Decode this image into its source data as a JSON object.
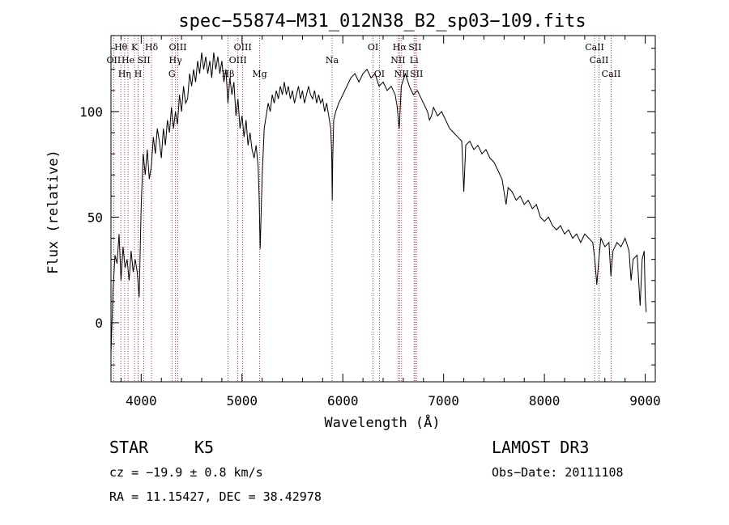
{
  "chart_data": {
    "type": "line",
    "title": "spec−55874−M31_012N38_B2_sp03−109.fits",
    "xlabel": "Wavelength (Å)",
    "ylabel": "Flux (relative)",
    "xlim": [
      3700,
      9100
    ],
    "ylim": [
      -28,
      136
    ],
    "x_ticks": [
      {
        "value": 4000,
        "label": "4000"
      },
      {
        "value": 5000,
        "label": "5000"
      },
      {
        "value": 6000,
        "label": "6000"
      },
      {
        "value": 7000,
        "label": "7000"
      },
      {
        "value": 8000,
        "label": "8000"
      },
      {
        "value": 9000,
        "label": "9000"
      }
    ],
    "y_ticks": [
      {
        "value": 0,
        "label": "0"
      },
      {
        "value": 50,
        "label": "50"
      },
      {
        "value": 100,
        "label": "100"
      }
    ],
    "spectrum_points": [
      [
        3700,
        -15
      ],
      [
        3720,
        15
      ],
      [
        3740,
        32
      ],
      [
        3760,
        28
      ],
      [
        3780,
        42
      ],
      [
        3800,
        20
      ],
      [
        3820,
        36
      ],
      [
        3840,
        26
      ],
      [
        3860,
        30
      ],
      [
        3880,
        20
      ],
      [
        3900,
        34
      ],
      [
        3920,
        24
      ],
      [
        3940,
        30
      ],
      [
        3960,
        24
      ],
      [
        3980,
        12
      ],
      [
        4000,
        55
      ],
      [
        4020,
        80
      ],
      [
        4040,
        70
      ],
      [
        4060,
        82
      ],
      [
        4080,
        68
      ],
      [
        4100,
        74
      ],
      [
        4120,
        88
      ],
      [
        4140,
        80
      ],
      [
        4160,
        92
      ],
      [
        4180,
        86
      ],
      [
        4200,
        78
      ],
      [
        4220,
        92
      ],
      [
        4240,
        84
      ],
      [
        4260,
        96
      ],
      [
        4280,
        90
      ],
      [
        4300,
        102
      ],
      [
        4320,
        92
      ],
      [
        4340,
        100
      ],
      [
        4360,
        94
      ],
      [
        4380,
        108
      ],
      [
        4400,
        100
      ],
      [
        4420,
        112
      ],
      [
        4440,
        104
      ],
      [
        4460,
        106
      ],
      [
        4480,
        118
      ],
      [
        4500,
        112
      ],
      [
        4520,
        120
      ],
      [
        4540,
        114
      ],
      [
        4560,
        124
      ],
      [
        4580,
        118
      ],
      [
        4600,
        128
      ],
      [
        4620,
        120
      ],
      [
        4640,
        126
      ],
      [
        4660,
        118
      ],
      [
        4680,
        124
      ],
      [
        4700,
        116
      ],
      [
        4720,
        128
      ],
      [
        4740,
        120
      ],
      [
        4760,
        126
      ],
      [
        4780,
        118
      ],
      [
        4800,
        124
      ],
      [
        4820,
        114
      ],
      [
        4840,
        120
      ],
      [
        4860,
        104
      ],
      [
        4880,
        116
      ],
      [
        4900,
        108
      ],
      [
        4920,
        114
      ],
      [
        4940,
        98
      ],
      [
        4960,
        106
      ],
      [
        4980,
        92
      ],
      [
        5000,
        98
      ],
      [
        5020,
        88
      ],
      [
        5040,
        96
      ],
      [
        5060,
        84
      ],
      [
        5080,
        90
      ],
      [
        5100,
        82
      ],
      [
        5120,
        78
      ],
      [
        5140,
        84
      ],
      [
        5160,
        74
      ],
      [
        5170,
        60
      ],
      [
        5180,
        35
      ],
      [
        5200,
        70
      ],
      [
        5220,
        92
      ],
      [
        5240,
        98
      ],
      [
        5260,
        104
      ],
      [
        5280,
        100
      ],
      [
        5300,
        108
      ],
      [
        5320,
        104
      ],
      [
        5340,
        110
      ],
      [
        5360,
        106
      ],
      [
        5380,
        112
      ],
      [
        5400,
        108
      ],
      [
        5420,
        114
      ],
      [
        5440,
        108
      ],
      [
        5460,
        112
      ],
      [
        5480,
        106
      ],
      [
        5500,
        110
      ],
      [
        5520,
        104
      ],
      [
        5540,
        108
      ],
      [
        5560,
        112
      ],
      [
        5580,
        106
      ],
      [
        5600,
        110
      ],
      [
        5620,
        104
      ],
      [
        5640,
        108
      ],
      [
        5660,
        112
      ],
      [
        5680,
        108
      ],
      [
        5700,
        106
      ],
      [
        5720,
        110
      ],
      [
        5740,
        104
      ],
      [
        5760,
        108
      ],
      [
        5780,
        104
      ],
      [
        5800,
        106
      ],
      [
        5820,
        100
      ],
      [
        5840,
        104
      ],
      [
        5860,
        98
      ],
      [
        5880,
        92
      ],
      [
        5890,
        80
      ],
      [
        5895,
        58
      ],
      [
        5900,
        78
      ],
      [
        5910,
        96
      ],
      [
        5930,
        100
      ],
      [
        5960,
        104
      ],
      [
        6000,
        108
      ],
      [
        6040,
        112
      ],
      [
        6080,
        116
      ],
      [
        6120,
        118
      ],
      [
        6160,
        114
      ],
      [
        6200,
        118
      ],
      [
        6240,
        120
      ],
      [
        6280,
        116
      ],
      [
        6320,
        118
      ],
      [
        6360,
        112
      ],
      [
        6400,
        114
      ],
      [
        6440,
        110
      ],
      [
        6480,
        112
      ],
      [
        6520,
        108
      ],
      [
        6540,
        102
      ],
      [
        6560,
        92
      ],
      [
        6580,
        112
      ],
      [
        6620,
        118
      ],
      [
        6660,
        112
      ],
      [
        6700,
        108
      ],
      [
        6740,
        110
      ],
      [
        6780,
        106
      ],
      [
        6800,
        104
      ],
      [
        6840,
        100
      ],
      [
        6860,
        96
      ],
      [
        6880,
        98
      ],
      [
        6900,
        102
      ],
      [
        6940,
        98
      ],
      [
        6980,
        100
      ],
      [
        7020,
        96
      ],
      [
        7060,
        92
      ],
      [
        7100,
        90
      ],
      [
        7140,
        88
      ],
      [
        7180,
        86
      ],
      [
        7200,
        62
      ],
      [
        7220,
        84
      ],
      [
        7260,
        86
      ],
      [
        7300,
        82
      ],
      [
        7340,
        84
      ],
      [
        7380,
        80
      ],
      [
        7420,
        82
      ],
      [
        7460,
        78
      ],
      [
        7500,
        76
      ],
      [
        7540,
        72
      ],
      [
        7580,
        68
      ],
      [
        7600,
        62
      ],
      [
        7620,
        56
      ],
      [
        7640,
        64
      ],
      [
        7680,
        62
      ],
      [
        7720,
        58
      ],
      [
        7760,
        60
      ],
      [
        7800,
        56
      ],
      [
        7840,
        58
      ],
      [
        7880,
        54
      ],
      [
        7920,
        56
      ],
      [
        7960,
        50
      ],
      [
        8000,
        48
      ],
      [
        8040,
        50
      ],
      [
        8080,
        46
      ],
      [
        8120,
        44
      ],
      [
        8160,
        46
      ],
      [
        8200,
        42
      ],
      [
        8240,
        44
      ],
      [
        8280,
        40
      ],
      [
        8320,
        42
      ],
      [
        8360,
        38
      ],
      [
        8400,
        42
      ],
      [
        8440,
        40
      ],
      [
        8480,
        38
      ],
      [
        8500,
        30
      ],
      [
        8520,
        18
      ],
      [
        8540,
        30
      ],
      [
        8560,
        40
      ],
      [
        8600,
        36
      ],
      [
        8640,
        38
      ],
      [
        8660,
        22
      ],
      [
        8680,
        34
      ],
      [
        8720,
        38
      ],
      [
        8760,
        36
      ],
      [
        8800,
        40
      ],
      [
        8840,
        34
      ],
      [
        8860,
        20
      ],
      [
        8880,
        30
      ],
      [
        8920,
        32
      ],
      [
        8950,
        8
      ],
      [
        8970,
        30
      ],
      [
        8990,
        34
      ],
      [
        9000,
        12
      ],
      [
        9010,
        5
      ]
    ],
    "spectral_lines": [
      {
        "wavelength": 3727,
        "row": 2,
        "label": "OII"
      },
      {
        "wavelength": 3798,
        "row": 1,
        "label": "Hθ"
      },
      {
        "wavelength": 3835,
        "row": 3,
        "label": "Hη"
      },
      {
        "wavelength": 3869,
        "row": 2,
        "label": "He"
      },
      {
        "wavelength": 3934,
        "row": 1,
        "label": "K"
      },
      {
        "wavelength": 3970,
        "row": 3,
        "label": "H"
      },
      {
        "wavelength": 4026,
        "row": 2,
        "label": "SII"
      },
      {
        "wavelength": 4102,
        "row": 1,
        "label": "Hδ"
      },
      {
        "wavelength": 4305,
        "row": 3,
        "label": "G"
      },
      {
        "wavelength": 4340,
        "row": 2,
        "label": "Hγ"
      },
      {
        "wavelength": 4363,
        "row": 1,
        "label": "OIII"
      },
      {
        "wavelength": 4861,
        "row": 3,
        "label": "Hβ"
      },
      {
        "wavelength": 4959,
        "row": 2,
        "label": "OIII"
      },
      {
        "wavelength": 5007,
        "row": 1,
        "label": "OIII"
      },
      {
        "wavelength": 5175,
        "row": 3,
        "label": "Mg"
      },
      {
        "wavelength": 5894,
        "row": 2,
        "label": "Na"
      },
      {
        "wavelength": 6300,
        "row": 1,
        "label": "OI"
      },
      {
        "wavelength": 6363,
        "row": 3,
        "label": "OI"
      },
      {
        "wavelength": 6548,
        "row": 2,
        "label": "NII"
      },
      {
        "wavelength": 6563,
        "row": 1,
        "label": "Hα"
      },
      {
        "wavelength": 6583,
        "row": 3,
        "label": "NII"
      },
      {
        "wavelength": 6707,
        "row": 2,
        "label": "Li"
      },
      {
        "wavelength": 6716,
        "row": 1,
        "label": "SII"
      },
      {
        "wavelength": 6731,
        "row": 3,
        "label": "SII"
      },
      {
        "wavelength": 8498,
        "row": 1,
        "label": "CaII"
      },
      {
        "wavelength": 8542,
        "row": 2,
        "label": "CaII"
      },
      {
        "wavelength": 8662,
        "row": 3,
        "label": "CaII"
      }
    ]
  },
  "info": {
    "class": "STAR",
    "subclass": "K5",
    "survey": "LAMOST DR3",
    "cz": "cz = −19.9 ± 0.8 km/s",
    "obs_date": "Obs−Date: 20111108",
    "radec": "RA =  11.15427, DEC =  38.42978"
  },
  "colors": {
    "spectrum": "#000000",
    "line_markers": "#cc0000",
    "axes": "#000000"
  }
}
